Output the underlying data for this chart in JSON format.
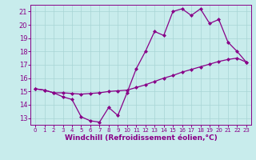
{
  "xlabel": "Windchill (Refroidissement éolien,°C)",
  "hours": [
    0,
    1,
    2,
    3,
    4,
    5,
    6,
    7,
    8,
    9,
    10,
    11,
    12,
    13,
    14,
    15,
    16,
    17,
    18,
    19,
    20,
    21,
    22,
    23
  ],
  "temp_line": [
    15.2,
    15.1,
    14.9,
    14.9,
    14.85,
    14.8,
    14.85,
    14.9,
    15.0,
    15.05,
    15.1,
    15.3,
    15.5,
    15.75,
    16.0,
    16.2,
    16.45,
    16.65,
    16.85,
    17.05,
    17.25,
    17.4,
    17.5,
    17.2
  ],
  "windchill_line": [
    15.2,
    15.1,
    14.9,
    14.6,
    14.4,
    13.1,
    12.8,
    12.7,
    13.8,
    13.2,
    14.9,
    16.7,
    18.0,
    19.5,
    19.2,
    21.0,
    21.2,
    20.7,
    21.2,
    20.1,
    20.4,
    18.7,
    18.0,
    17.2
  ],
  "line_color": "#880088",
  "bg_color": "#c8ecec",
  "grid_color": "#a8d4d4",
  "ylim": [
    12.5,
    21.5
  ],
  "yticks": [
    13,
    14,
    15,
    16,
    17,
    18,
    19,
    20,
    21
  ],
  "xlim": [
    -0.5,
    23.5
  ],
  "xticks": [
    0,
    1,
    2,
    3,
    4,
    5,
    6,
    7,
    8,
    9,
    10,
    11,
    12,
    13,
    14,
    15,
    16,
    17,
    18,
    19,
    20,
    21,
    22,
    23
  ],
  "marker": "D",
  "markersize": 2.0,
  "linewidth": 0.9,
  "xlabel_fontsize": 6.5,
  "xtick_fontsize": 5.0,
  "ytick_fontsize": 6.0
}
